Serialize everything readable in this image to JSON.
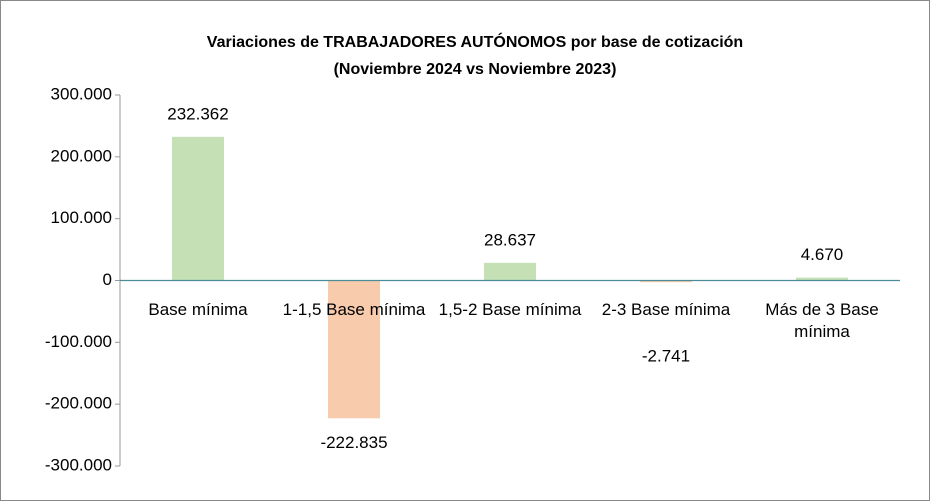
{
  "chart_data": {
    "type": "bar",
    "title": "Variaciones de TRABAJADORES AUTÓNOMOS por base de cotización",
    "subtitle": "(Noviembre 2024 vs Noviembre 2023)",
    "categories": [
      "Base mínima",
      "1-1,5 Base mínima",
      "1,5-2 Base mínima",
      "2-3 Base mínima",
      "Más de 3 Base mínima"
    ],
    "values": [
      232362,
      -222835,
      28637,
      -2741,
      4670
    ],
    "value_labels": [
      "232.362",
      "-222.835",
      "28.637",
      "-2.741",
      "4.670"
    ],
    "colors": [
      "#c5e0b4",
      "#f8cbad",
      "#c5e0b4",
      "#f8cbad",
      "#c5e0b4"
    ],
    "ylim": [
      -300000,
      300000
    ],
    "yticks": [
      {
        "value": -300000,
        "label": "-300.000"
      },
      {
        "value": -200000,
        "label": "-200.000"
      },
      {
        "value": -100000,
        "label": "-100.000"
      },
      0,
      {
        "value": 100000,
        "label": "100.000"
      },
      {
        "value": 200000,
        "label": "200.000"
      },
      {
        "value": 300000,
        "label": "300.000"
      }
    ],
    "grid": false
  }
}
